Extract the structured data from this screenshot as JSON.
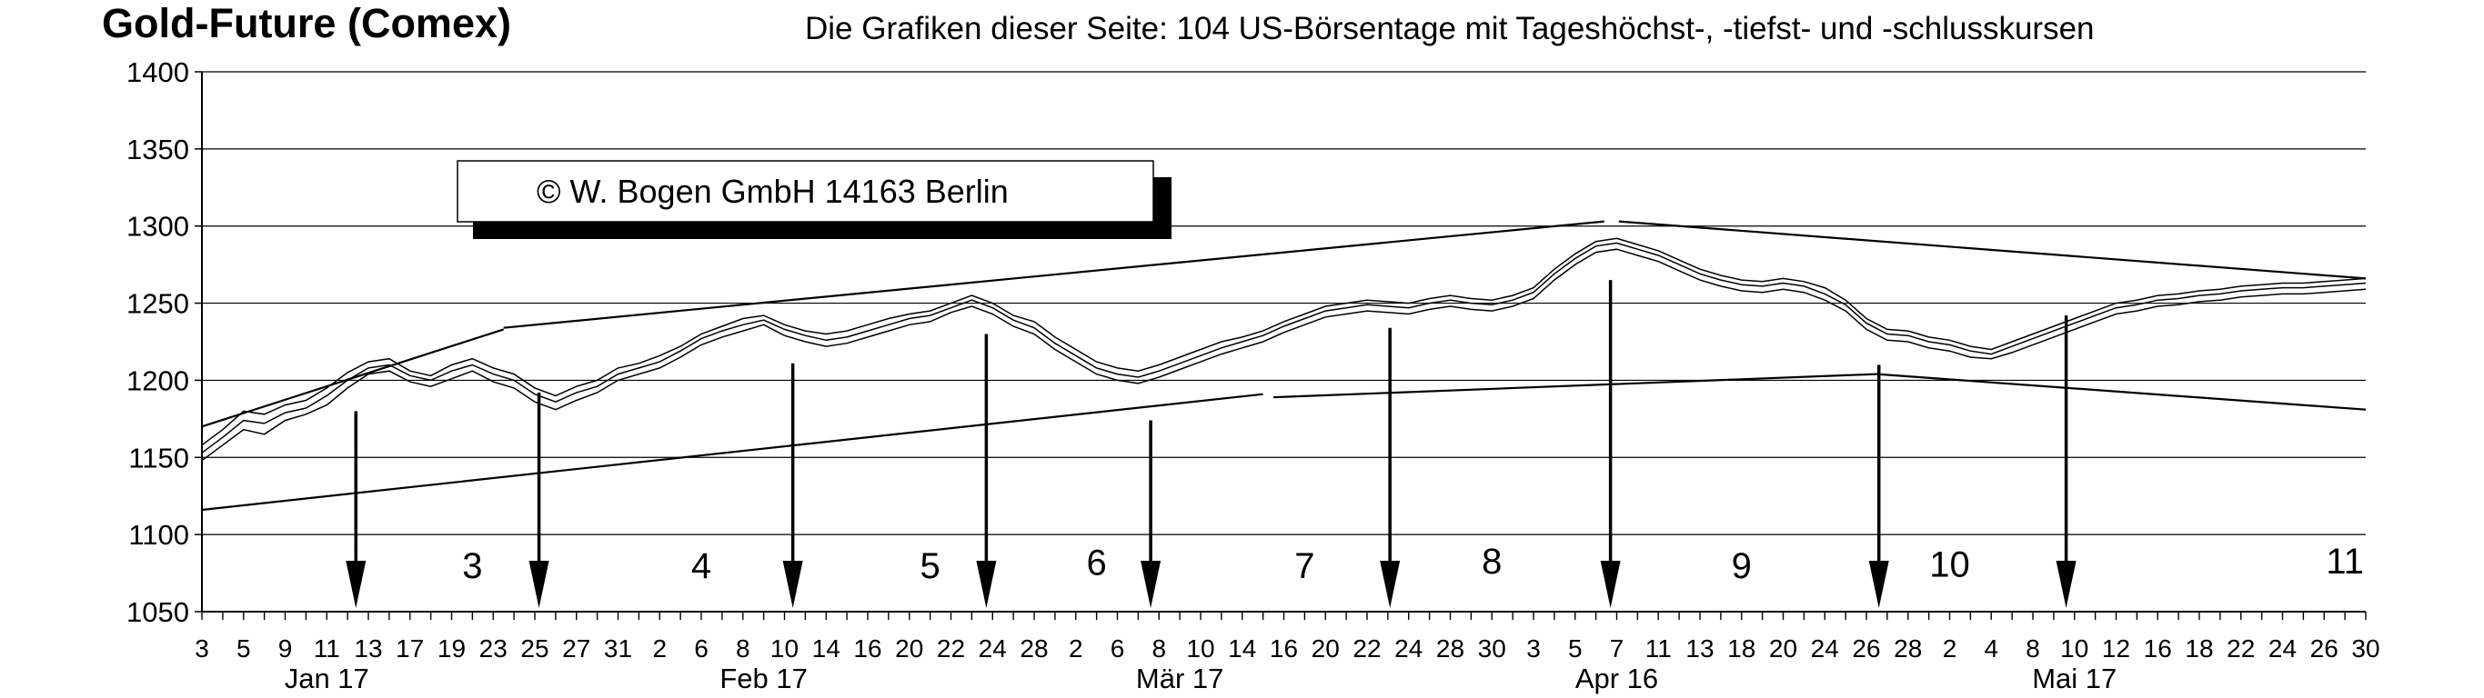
{
  "chart_data": {
    "type": "line",
    "title": "Gold-Future (Comex)",
    "subtitle": "Die Grafiken dieser Seite: 104 US-Börsentage mit Tageshöchst-, -tiefst- und -schlusskursen",
    "copyright": "©  W. Bogen GmbH 14163 Berlin",
    "ylim": [
      1050,
      1400
    ],
    "yticks": [
      1050,
      1100,
      1150,
      1200,
      1250,
      1300,
      1350,
      1400
    ],
    "grid": true,
    "x_range": [
      0,
      104
    ],
    "x_tick_labels": [
      "3",
      "5",
      "9",
      "11",
      "13",
      "17",
      "19",
      "23",
      "25",
      "27",
      "31",
      "2",
      "6",
      "8",
      "10",
      "14",
      "16",
      "20",
      "22",
      "24",
      "28",
      "2",
      "6",
      "8",
      "10",
      "14",
      "16",
      "20",
      "22",
      "24",
      "28",
      "30",
      "3",
      "5",
      "7",
      "11",
      "13",
      "18",
      "20",
      "24",
      "26",
      "28",
      "2",
      "4",
      "8",
      "10",
      "12",
      "16",
      "18",
      "22",
      "24",
      "26",
      "30"
    ],
    "month_labels": [
      {
        "label": "Jan 17",
        "x": 6
      },
      {
        "label": "Feb 17",
        "x": 27
      },
      {
        "label": "Mär 17",
        "x": 47
      },
      {
        "label": "Apr 16",
        "x": 68
      },
      {
        "label": "Mai 17",
        "x": 90
      }
    ],
    "cycle_numbers": [
      {
        "label": "3",
        "x": 13,
        "y": 1080
      },
      {
        "label": "4",
        "x": 24,
        "y": 1080
      },
      {
        "label": "5",
        "x": 35,
        "y": 1080
      },
      {
        "label": "6",
        "x": 43,
        "y": 1082
      },
      {
        "label": "7",
        "x": 53,
        "y": 1080
      },
      {
        "label": "8",
        "x": 62,
        "y": 1083
      },
      {
        "label": "9",
        "x": 74,
        "y": 1080
      },
      {
        "label": "10",
        "x": 84,
        "y": 1081
      },
      {
        "label": "11",
        "x": 103,
        "y": 1083
      }
    ],
    "cycle_arrows": [
      {
        "x": 7.4,
        "y_from": 1180
      },
      {
        "x": 16.2,
        "y_from": 1192
      },
      {
        "x": 28.4,
        "y_from": 1211
      },
      {
        "x": 37.7,
        "y_from": 1230
      },
      {
        "x": 45.6,
        "y_from": 1174
      },
      {
        "x": 57.1,
        "y_from": 1234
      },
      {
        "x": 67.7,
        "y_from": 1265
      },
      {
        "x": 80.6,
        "y_from": 1210
      },
      {
        "x": 89.6,
        "y_from": 1242
      }
    ],
    "trend_lines": [
      {
        "points": [
          [
            0,
            1170
          ],
          [
            14.5,
            1233
          ]
        ]
      },
      {
        "points": [
          [
            14.5,
            1234
          ],
          [
            67.4,
            1303
          ]
        ]
      },
      {
        "points": [
          [
            68.1,
            1303
          ],
          [
            104,
            1266
          ]
        ]
      },
      {
        "points": [
          [
            0,
            1116
          ],
          [
            51,
            1191
          ]
        ]
      },
      {
        "points": [
          [
            51.5,
            1189
          ],
          [
            80.5,
            1204
          ]
        ]
      },
      {
        "points": [
          [
            80.5,
            1204
          ],
          [
            104,
            1181
          ]
        ]
      }
    ],
    "series": [
      {
        "values": [
          1158,
          1168,
          1180,
          1178,
          1184,
          1187,
          1195,
          1205,
          1212,
          1214,
          1206,
          1203,
          1210,
          1214,
          1208,
          1204,
          1195,
          1190,
          1196,
          1200,
          1208,
          1211,
          1216,
          1222,
          1230,
          1235,
          1240,
          1242,
          1236,
          1232,
          1230,
          1232,
          1236,
          1240,
          1243,
          1245,
          1250,
          1255,
          1250,
          1242,
          1238,
          1228,
          1220,
          1212,
          1208,
          1206,
          1210,
          1215,
          1220,
          1225,
          1228,
          1232,
          1238,
          1243,
          1248,
          1250,
          1252,
          1251,
          1250,
          1253,
          1255,
          1253,
          1252,
          1255,
          1260,
          1272,
          1282,
          1290,
          1292,
          1288,
          1284,
          1278,
          1272,
          1268,
          1265,
          1264,
          1266,
          1264,
          1260,
          1252,
          1240,
          1233,
          1232,
          1228,
          1226,
          1222,
          1220,
          1225,
          1230,
          1235,
          1240,
          1245,
          1250,
          1252,
          1255,
          1256,
          1258,
          1259,
          1261,
          1262,
          1263,
          1263,
          1264,
          1265,
          1266
        ]
      },
      {
        "values": [
          1148,
          1158,
          1168,
          1165,
          1174,
          1178,
          1184,
          1195,
          1204,
          1206,
          1199,
          1196,
          1201,
          1206,
          1199,
          1195,
          1186,
          1181,
          1187,
          1192,
          1200,
          1204,
          1208,
          1215,
          1223,
          1228,
          1232,
          1236,
          1229,
          1225,
          1222,
          1224,
          1228,
          1232,
          1236,
          1238,
          1244,
          1248,
          1243,
          1235,
          1230,
          1220,
          1212,
          1204,
          1200,
          1198,
          1202,
          1207,
          1212,
          1217,
          1221,
          1225,
          1231,
          1236,
          1241,
          1243,
          1245,
          1244,
          1243,
          1246,
          1248,
          1246,
          1245,
          1248,
          1253,
          1265,
          1275,
          1283,
          1285,
          1281,
          1277,
          1271,
          1265,
          1261,
          1258,
          1257,
          1259,
          1257,
          1252,
          1245,
          1233,
          1226,
          1225,
          1221,
          1219,
          1215,
          1214,
          1218,
          1223,
          1228,
          1233,
          1238,
          1243,
          1245,
          1248,
          1249,
          1251,
          1252,
          1254,
          1255,
          1256,
          1256,
          1257,
          1258,
          1259
        ]
      },
      {
        "values": [
          1153,
          1163,
          1174,
          1172,
          1179,
          1182,
          1190,
          1200,
          1208,
          1210,
          1203,
          1200,
          1206,
          1210,
          1204,
          1200,
          1191,
          1186,
          1192,
          1196,
          1204,
          1208,
          1212,
          1219,
          1227,
          1232,
          1236,
          1239,
          1233,
          1229,
          1226,
          1228,
          1232,
          1236,
          1240,
          1242,
          1247,
          1252,
          1247,
          1239,
          1234,
          1224,
          1216,
          1208,
          1204,
          1202,
          1206,
          1211,
          1216,
          1221,
          1225,
          1229,
          1235,
          1240,
          1245,
          1247,
          1249,
          1248,
          1247,
          1250,
          1252,
          1250,
          1249,
          1252,
          1257,
          1269,
          1279,
          1287,
          1289,
          1285,
          1281,
          1275,
          1269,
          1265,
          1262,
          1261,
          1263,
          1261,
          1256,
          1249,
          1237,
          1230,
          1229,
          1225,
          1223,
          1219,
          1217,
          1222,
          1227,
          1232,
          1237,
          1242,
          1247,
          1249,
          1252,
          1253,
          1255,
          1256,
          1258,
          1259,
          1260,
          1260,
          1261,
          1262,
          1263
        ]
      }
    ]
  }
}
